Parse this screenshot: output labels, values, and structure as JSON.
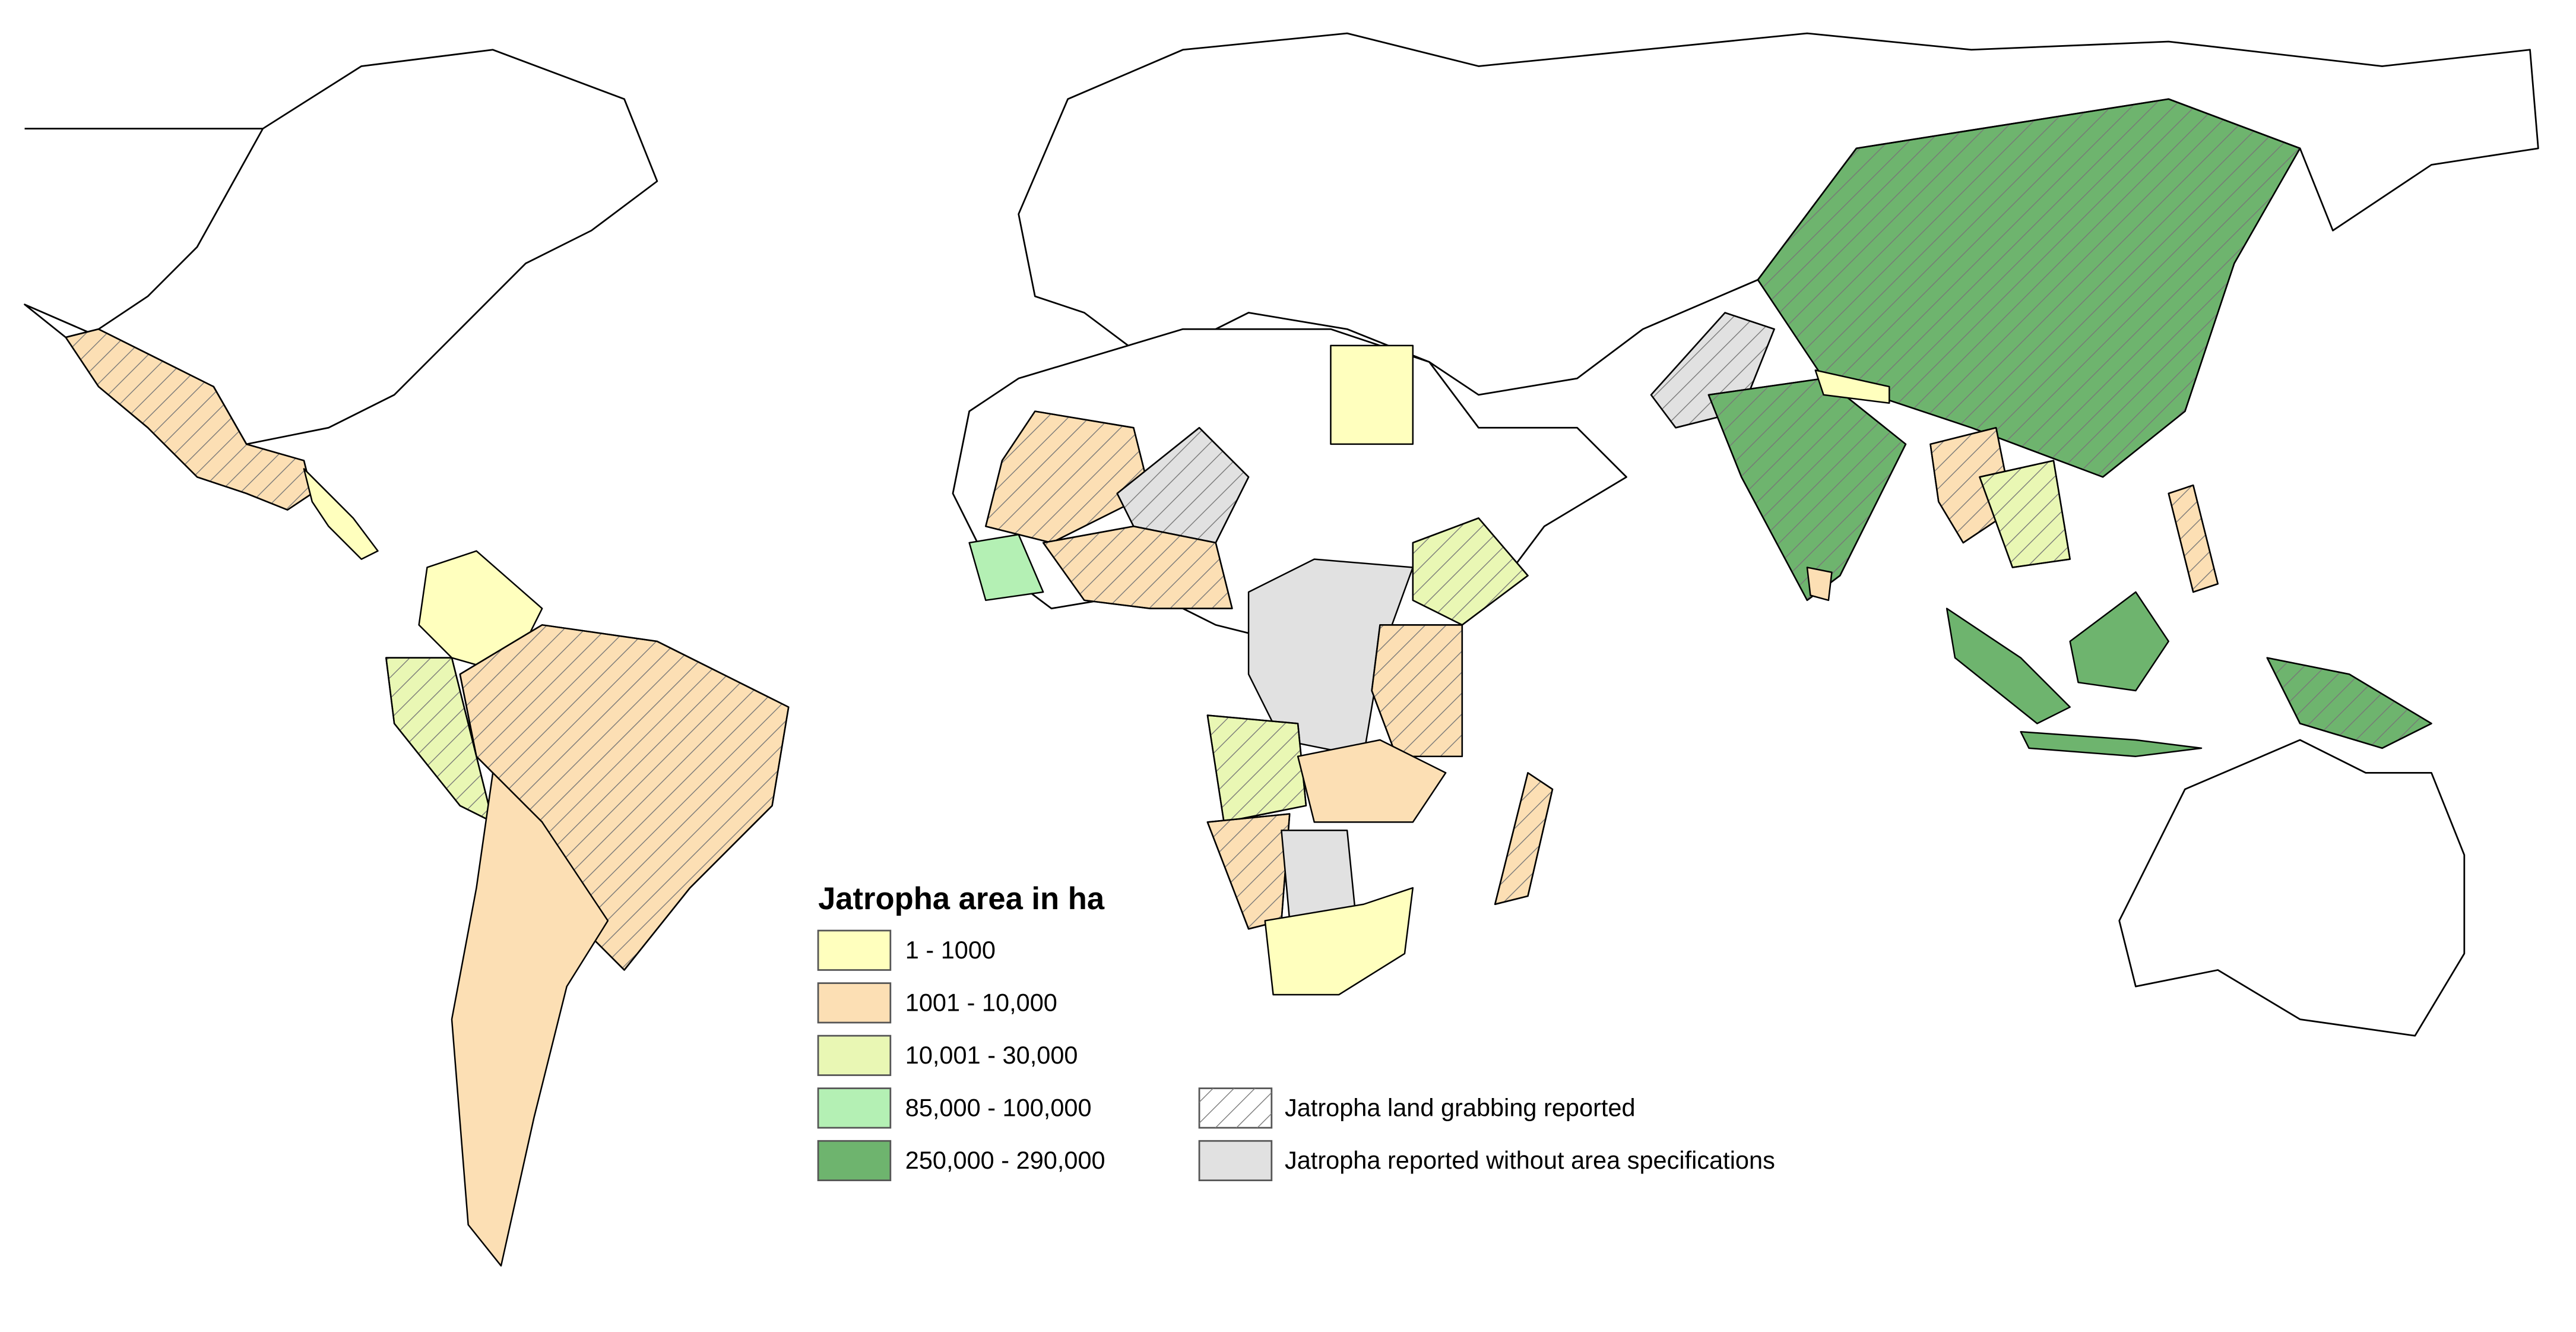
{
  "legend": {
    "title": "Jatropha area in ha",
    "classes": [
      {
        "label": "1 - 1000",
        "color": "#ffffbe"
      },
      {
        "label": "1001 - 10,000",
        "color": "#fcdfb4"
      },
      {
        "label": "10,001 - 30,000",
        "color": "#e9f7b4"
      },
      {
        "label": "85,000 - 100,000",
        "color": "#b4f0b4"
      },
      {
        "label": "250,000 - 290,000",
        "color": "#6eb46e"
      }
    ],
    "patterns": [
      {
        "label": "Jatropha land grabbing reported"
      },
      {
        "label": "Jatropha reported without area specifications",
        "color": "#e1e1e1"
      }
    ]
  }
}
